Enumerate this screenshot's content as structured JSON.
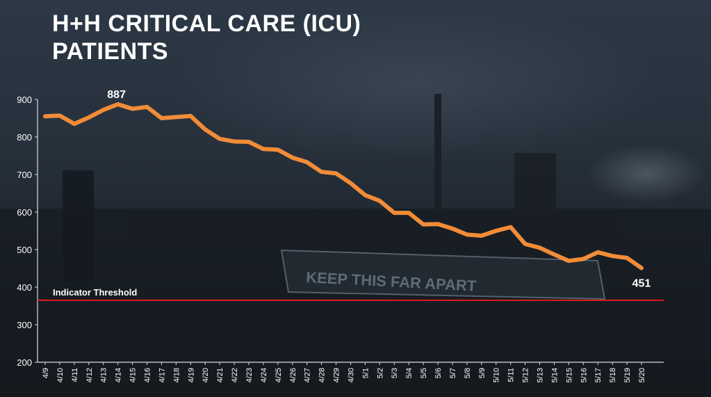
{
  "title_line1": "H+H CRITICAL CARE (ICU)",
  "title_line2": "PATIENTS",
  "sign_text": "KEEP THIS FAR APART",
  "chart_data": {
    "type": "line",
    "title": "H+H CRITICAL CARE (ICU) PATIENTS",
    "xlabel": "",
    "ylabel": "",
    "ylim": [
      200,
      900
    ],
    "yticks": [
      200,
      300,
      400,
      500,
      600,
      700,
      800,
      900
    ],
    "grid": false,
    "x": [
      "4/9",
      "4/10",
      "4/11",
      "4/12",
      "4/13",
      "4/14",
      "4/15",
      "4/16",
      "4/17",
      "4/18",
      "4/19",
      "4/20",
      "4/21",
      "4/22",
      "4/23",
      "4/24",
      "4/25",
      "4/26",
      "4/27",
      "4/28",
      "4/29",
      "4/30",
      "5/1",
      "5/2",
      "5/3",
      "5/4",
      "5/5",
      "5/6",
      "5/7",
      "5/8",
      "5/9",
      "5/10",
      "5/11",
      "5/12",
      "5/13",
      "5/14",
      "5/15",
      "5/16",
      "5/17",
      "5/18",
      "5/19",
      "5/20"
    ],
    "series": [
      {
        "color": "#f28c38",
        "values": [
          855,
          857,
          835,
          852,
          872,
          887,
          875,
          880,
          850,
          853,
          856,
          820,
          795,
          788,
          787,
          768,
          766,
          745,
          733,
          707,
          703,
          677,
          645,
          630,
          598,
          598,
          567,
          568,
          556,
          540,
          537,
          550,
          560,
          515,
          505,
          487,
          470,
          475,
          493,
          483,
          478,
          451
        ]
      }
    ],
    "annotations": [
      {
        "label": "887",
        "index": 5
      },
      {
        "label": "451",
        "index": 41
      }
    ],
    "threshold": {
      "label": "Indicator Threshold",
      "value": 365,
      "color": "#e01b1b"
    }
  }
}
